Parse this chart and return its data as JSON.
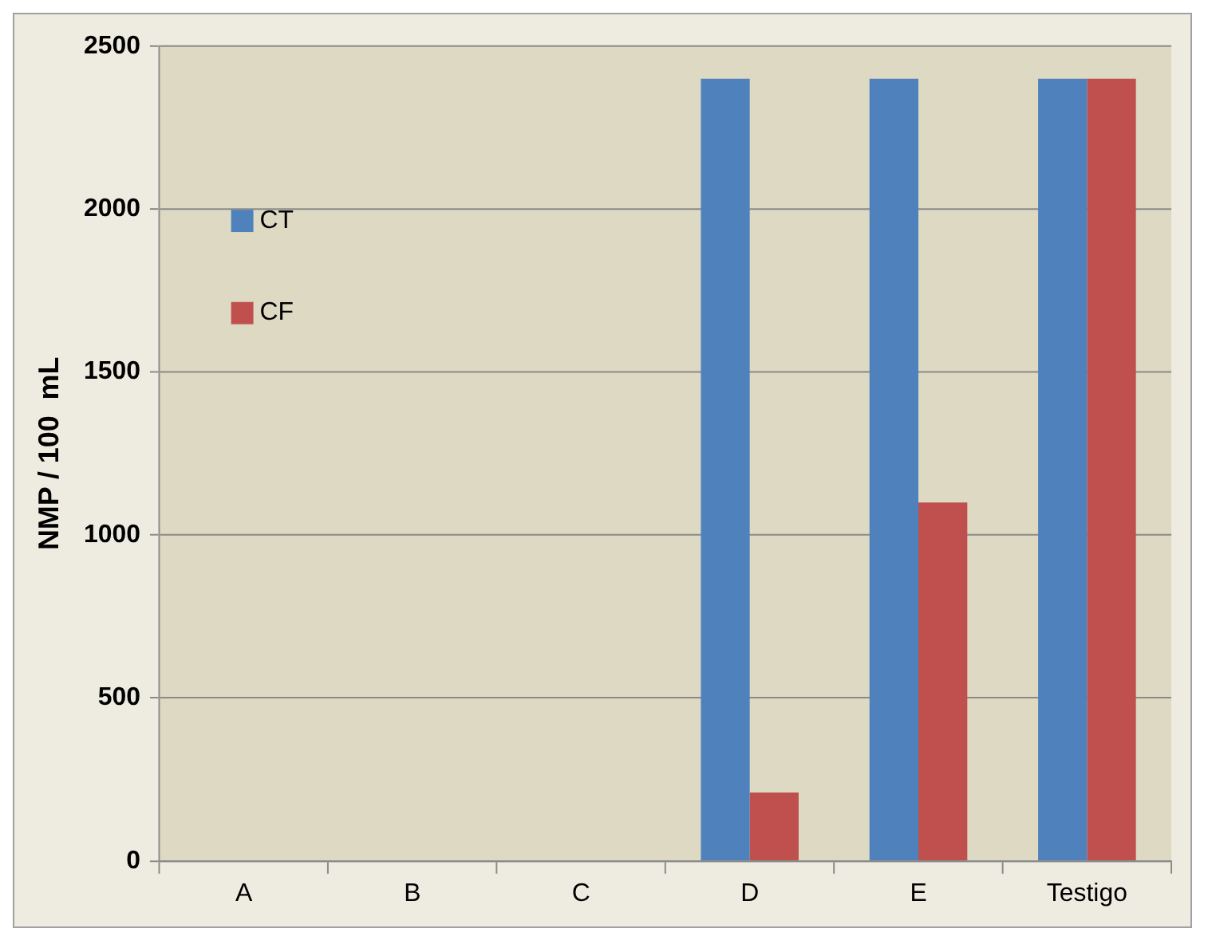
{
  "chart_data": {
    "type": "bar",
    "ylabel": "NMP / 100  mL",
    "categories": [
      "A",
      "B",
      "C",
      "D",
      "E",
      "Testigo"
    ],
    "series": [
      {
        "name": "CT",
        "color": "#4f81bd",
        "values": [
          0,
          0,
          0,
          2400,
          2400,
          2400
        ]
      },
      {
        "name": "CF",
        "color": "#c0504d",
        "values": [
          0,
          0,
          0,
          210,
          1100,
          2400
        ]
      }
    ],
    "ylim": [
      0,
      2500
    ],
    "yticks": [
      0,
      500,
      1000,
      1500,
      2000,
      2500
    ],
    "grid": "y",
    "legend": "top left"
  }
}
